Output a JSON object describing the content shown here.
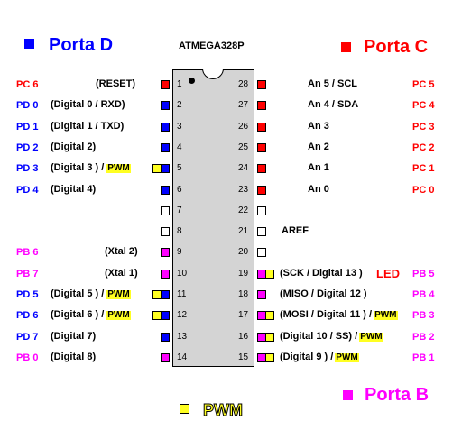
{
  "colors": {
    "port_d": "#0000ff",
    "port_c": "#ff0000",
    "port_b": "#ff00ff",
    "pwm": "#ffff22",
    "chip_body": "#d4d4d4"
  },
  "legend": {
    "port_d": "Porta D",
    "port_c": "Porta C",
    "port_b": "Porta B",
    "pwm": "PWM"
  },
  "chip": {
    "name": "ATMEGA328P"
  },
  "pwm_tag": "PWM",
  "left_pins": [
    {
      "num": "1",
      "port": "PC 6",
      "func": "(RESET)",
      "color": "#ff0000",
      "pwm": false
    },
    {
      "num": "2",
      "port": "PD 0",
      "func": "(Digital  0 / RXD)",
      "color": "#0000ff",
      "pwm": false
    },
    {
      "num": "3",
      "port": "PD 1",
      "func": "(Digital  1 / TXD)",
      "color": "#0000ff",
      "pwm": false
    },
    {
      "num": "4",
      "port": "PD 2",
      "func": "(Digital  2)",
      "color": "#0000ff",
      "pwm": false
    },
    {
      "num": "5",
      "port": "PD 3",
      "func": "(Digital  3 ) /",
      "color": "#0000ff",
      "pwm": true
    },
    {
      "num": "6",
      "port": "PD 4",
      "func": "(Digital  4)",
      "color": "#0000ff",
      "pwm": false
    },
    {
      "num": "7",
      "port": "",
      "func": "",
      "color": "#ffffff",
      "pwm": false
    },
    {
      "num": "8",
      "port": "",
      "func": "",
      "color": "#ffffff",
      "pwm": false
    },
    {
      "num": "9",
      "port": "PB 6",
      "func": "(Xtal 2)",
      "color": "#ff00ff",
      "pwm": false
    },
    {
      "num": "10",
      "port": "PB 7",
      "func": "(Xtal 1)",
      "color": "#ff00ff",
      "pwm": false
    },
    {
      "num": "11",
      "port": "PD 5",
      "func": "(Digital  5 ) /",
      "color": "#0000ff",
      "pwm": true
    },
    {
      "num": "12",
      "port": "PD 6",
      "func": "(Digital 6 ) /",
      "color": "#0000ff",
      "pwm": true
    },
    {
      "num": "13",
      "port": "PD 7",
      "func": "(Digital  7)",
      "color": "#0000ff",
      "pwm": false
    },
    {
      "num": "14",
      "port": "PB 0",
      "func": "(Digital  8)",
      "color": "#ff00ff",
      "pwm": false
    }
  ],
  "right_pins": [
    {
      "num": "28",
      "port": "PC 5",
      "func": "An 5  / SCL",
      "color": "#ff0000",
      "pwm": false,
      "led": ""
    },
    {
      "num": "27",
      "port": "PC 4",
      "func": "An 4  / SDA",
      "color": "#ff0000",
      "pwm": false,
      "led": ""
    },
    {
      "num": "26",
      "port": "PC 3",
      "func": "An 3",
      "color": "#ff0000",
      "pwm": false,
      "led": ""
    },
    {
      "num": "25",
      "port": "PC 2",
      "func": "An 2",
      "color": "#ff0000",
      "pwm": false,
      "led": ""
    },
    {
      "num": "24",
      "port": "PC 1",
      "func": "An 1",
      "color": "#ff0000",
      "pwm": false,
      "led": ""
    },
    {
      "num": "23",
      "port": "PC 0",
      "func": "An 0",
      "color": "#ff0000",
      "pwm": false,
      "led": ""
    },
    {
      "num": "22",
      "port": "",
      "func": "",
      "color": "#ffffff",
      "pwm": false,
      "led": ""
    },
    {
      "num": "21",
      "port": "",
      "func": "AREF",
      "color": "#ffffff",
      "pwm": false,
      "led": ""
    },
    {
      "num": "20",
      "port": "",
      "func": "",
      "color": "#ffffff",
      "pwm": false,
      "led": ""
    },
    {
      "num": "19",
      "port": "PB 5",
      "func": "(SCK / Digital 13 )",
      "color": "#ff00ff",
      "pwm": false,
      "led": "LED"
    },
    {
      "num": "18",
      "port": "PB 4",
      "func": "(MISO / Digital 12 )",
      "color": "#ff00ff",
      "pwm": false,
      "led": ""
    },
    {
      "num": "17",
      "port": "PB 3",
      "func": "(MOSI / Digital 11 ) /",
      "color": "#ff00ff",
      "pwm": true,
      "led": ""
    },
    {
      "num": "16",
      "port": "PB 2",
      "func": "(Digital 10 / SS)     /",
      "color": "#ff00ff",
      "pwm": true,
      "led": ""
    },
    {
      "num": "15",
      "port": "PB 1",
      "func": "(Digital 9 )         /",
      "color": "#ff00ff",
      "pwm": true,
      "led": ""
    }
  ]
}
